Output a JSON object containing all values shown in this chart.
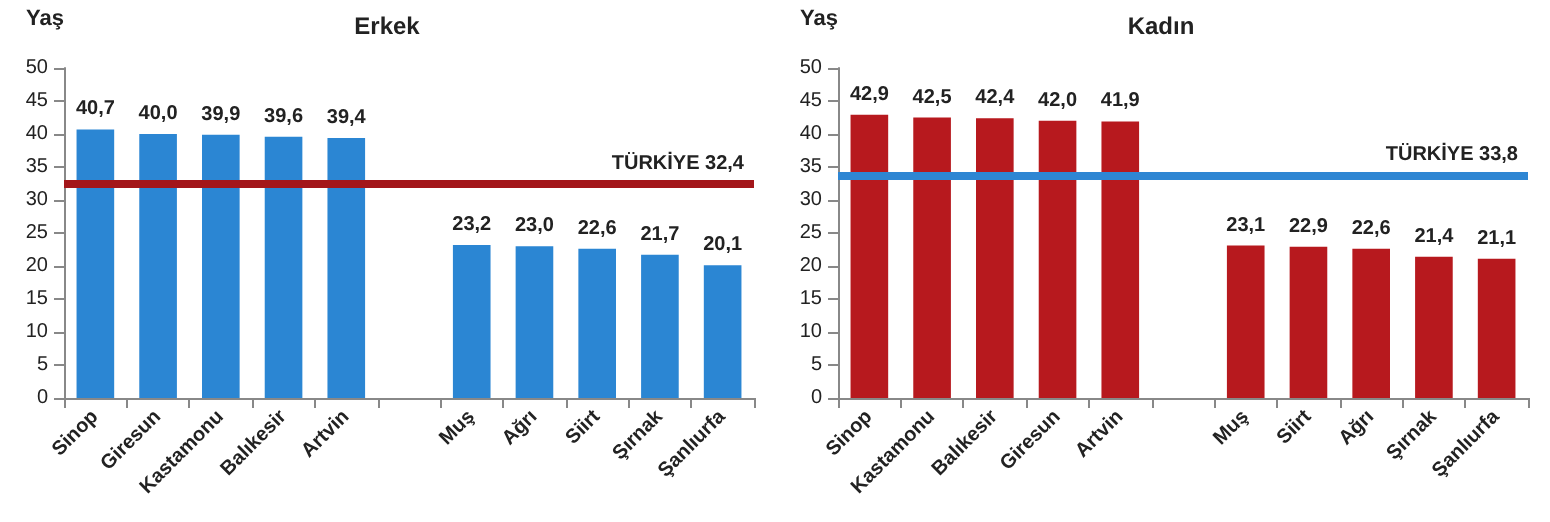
{
  "chart_data": [
    {
      "type": "bar",
      "title": "Erkek",
      "ylabel": "Yaş",
      "categories": [
        "Sinop",
        "Giresun",
        "Kastamonu",
        "Balıkesir",
        "Artvin",
        null,
        "Muş",
        "Ağrı",
        "Siirt",
        "Şırnak",
        "Şanlıurfa"
      ],
      "series": [
        {
          "color": "#2b86d3",
          "values": [
            40.7,
            40.0,
            39.9,
            39.6,
            39.4,
            null,
            23.2,
            23.0,
            22.6,
            21.7,
            20.1
          ],
          "value_labels": [
            "40,7",
            "40,0",
            "39,9",
            "39,6",
            "39,4",
            null,
            "23,2",
            "23,0",
            "22,6",
            "21,7",
            "20,1"
          ]
        }
      ],
      "ylim": [
        0,
        50
      ],
      "yticks": [
        0,
        5,
        10,
        15,
        20,
        25,
        30,
        35,
        40,
        45,
        50
      ],
      "ref_lines": [
        {
          "axis": "y",
          "value": 32.4,
          "label": "TÜRKİYE 32,4",
          "color": "#a3161a"
        }
      ]
    },
    {
      "type": "bar",
      "title": "Kadın",
      "ylabel": "Yaş",
      "categories": [
        "Sinop",
        "Kastamonu",
        "Balıkesir",
        "Giresun",
        "Artvin",
        null,
        "Muş",
        "Siirt",
        "Ağrı",
        "Şırnak",
        "Şanlıurfa"
      ],
      "series": [
        {
          "color": "#b7191e",
          "values": [
            42.9,
            42.5,
            42.4,
            42.0,
            41.9,
            null,
            23.1,
            22.9,
            22.6,
            21.4,
            21.1
          ],
          "value_labels": [
            "42,9",
            "42,5",
            "42,4",
            "42,0",
            "41,9",
            null,
            "23,1",
            "22,9",
            "22,6",
            "21,4",
            "21,1"
          ]
        }
      ],
      "ylim": [
        0,
        50
      ],
      "yticks": [
        0,
        5,
        10,
        15,
        20,
        25,
        30,
        35,
        40,
        45,
        50
      ],
      "ref_lines": [
        {
          "axis": "y",
          "value": 33.8,
          "label": "TÜRKİYE 33,8",
          "color": "#2e86d3"
        }
      ]
    }
  ]
}
